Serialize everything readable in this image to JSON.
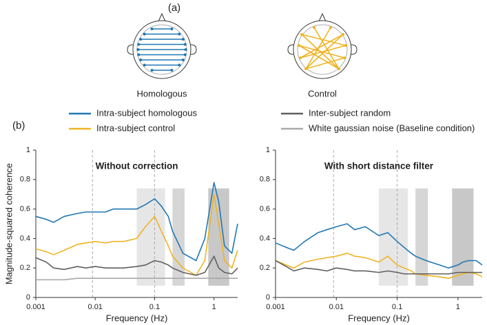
{
  "panel_a": {
    "label": "(a)",
    "heads": [
      {
        "label": "Homologous"
      },
      {
        "label": "Control"
      }
    ]
  },
  "panel_b_label": "(b)",
  "chart_data": [
    {
      "type": "line",
      "title": "Without correction",
      "xlabel": "Frequency (Hz)",
      "ylabel": "Magnitude-squared coherence",
      "xscale": "log",
      "xlim": [
        0.001,
        2.5
      ],
      "ylim": [
        0,
        1
      ],
      "xticks": [
        0.001,
        0.01,
        0.1,
        1
      ],
      "yticks": [
        0,
        0.2,
        0.4,
        0.6,
        0.8,
        1
      ],
      "vlines": [
        0.009,
        0.1
      ],
      "bands": [
        {
          "from": 0.05,
          "to": 0.15,
          "color": "#e6e6e6"
        },
        {
          "from": 0.2,
          "to": 0.32,
          "color": "#d6d6d6"
        },
        {
          "from": 0.8,
          "to": 1.8,
          "color": "#c8c8c8"
        }
      ],
      "x": [
        0.001,
        0.0015,
        0.002,
        0.003,
        0.005,
        0.007,
        0.01,
        0.015,
        0.02,
        0.03,
        0.05,
        0.07,
        0.1,
        0.13,
        0.17,
        0.2,
        0.3,
        0.5,
        0.7,
        1,
        1.2,
        1.5,
        2,
        2.5
      ],
      "series": [
        {
          "name": "Intra-subject homologous",
          "color": "#1f77b4",
          "values": [
            0.55,
            0.53,
            0.51,
            0.55,
            0.57,
            0.58,
            0.58,
            0.58,
            0.6,
            0.6,
            0.6,
            0.63,
            0.67,
            0.62,
            0.55,
            0.45,
            0.3,
            0.25,
            0.4,
            0.78,
            0.65,
            0.35,
            0.3,
            0.5
          ]
        },
        {
          "name": "Intra-subject control",
          "color": "#f0b323",
          "values": [
            0.33,
            0.31,
            0.29,
            0.32,
            0.36,
            0.37,
            0.38,
            0.37,
            0.38,
            0.38,
            0.4,
            0.48,
            0.55,
            0.45,
            0.35,
            0.28,
            0.2,
            0.15,
            0.25,
            0.7,
            0.5,
            0.25,
            0.2,
            0.32
          ]
        },
        {
          "name": "Inter-subject random",
          "color": "#5f5f5f",
          "values": [
            0.27,
            0.24,
            0.2,
            0.19,
            0.21,
            0.2,
            0.21,
            0.2,
            0.2,
            0.2,
            0.21,
            0.22,
            0.25,
            0.24,
            0.22,
            0.2,
            0.17,
            0.15,
            0.17,
            0.28,
            0.2,
            0.17,
            0.16,
            0.2
          ]
        },
        {
          "name": "White gaussian noise (Baseline condition)",
          "color": "#a8a8a8",
          "values": [
            0.12,
            0.12,
            0.12,
            0.12,
            0.13,
            0.13,
            0.13,
            0.13,
            0.13,
            0.13,
            0.13,
            0.13,
            0.13,
            0.13,
            0.13,
            0.13,
            0.13,
            0.13,
            0.13,
            0.13,
            0.13,
            0.13,
            0.13,
            0.13
          ]
        }
      ]
    },
    {
      "type": "line",
      "title": "With short distance filter",
      "xlabel": "Frequency (Hz)",
      "xscale": "log",
      "xlim": [
        0.001,
        2.5
      ],
      "ylim": [
        0,
        1
      ],
      "xticks": [
        0.001,
        0.01,
        0.1,
        1
      ],
      "yticks": [
        0,
        0.2,
        0.4,
        0.6,
        0.8,
        1
      ],
      "vlines": [
        0.009,
        0.1
      ],
      "bands": [
        {
          "from": 0.05,
          "to": 0.15,
          "color": "#e6e6e6"
        },
        {
          "from": 0.2,
          "to": 0.32,
          "color": "#d6d6d6"
        },
        {
          "from": 0.8,
          "to": 1.8,
          "color": "#c8c8c8"
        }
      ],
      "x": [
        0.001,
        0.0015,
        0.002,
        0.003,
        0.005,
        0.007,
        0.01,
        0.015,
        0.02,
        0.03,
        0.05,
        0.07,
        0.1,
        0.13,
        0.17,
        0.2,
        0.3,
        0.5,
        0.7,
        1,
        1.2,
        1.5,
        2,
        2.5
      ],
      "series": [
        {
          "color": "#1f77b4",
          "values": [
            0.37,
            0.34,
            0.32,
            0.38,
            0.44,
            0.46,
            0.48,
            0.5,
            0.46,
            0.48,
            0.42,
            0.44,
            0.38,
            0.34,
            0.3,
            0.28,
            0.25,
            0.22,
            0.2,
            0.22,
            0.24,
            0.25,
            0.25,
            0.22
          ]
        },
        {
          "color": "#f0b323",
          "values": [
            0.25,
            0.22,
            0.2,
            0.24,
            0.26,
            0.27,
            0.28,
            0.3,
            0.28,
            0.27,
            0.24,
            0.28,
            0.22,
            0.2,
            0.18,
            0.16,
            0.15,
            0.14,
            0.13,
            0.15,
            0.16,
            0.17,
            0.16,
            0.14
          ]
        },
        {
          "color": "#5f5f5f",
          "values": [
            0.25,
            0.21,
            0.18,
            0.2,
            0.19,
            0.18,
            0.2,
            0.19,
            0.18,
            0.18,
            0.17,
            0.18,
            0.17,
            0.16,
            0.16,
            0.16,
            0.16,
            0.16,
            0.16,
            0.17,
            0.17,
            0.17,
            0.17,
            0.17
          ]
        }
      ]
    }
  ]
}
